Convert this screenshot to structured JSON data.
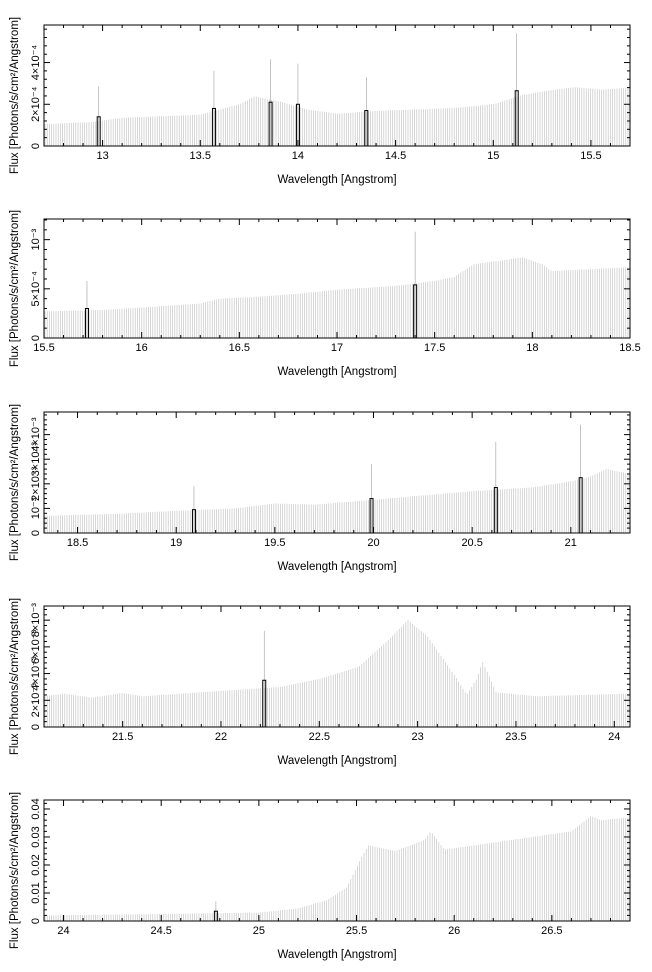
{
  "chart_data": [
    {
      "type": "bar",
      "xlabel": "Wavelength [Angstrom]",
      "ylabel": "Flux [Photons/s/cm²/Angstrom]",
      "xlim": [
        12.7,
        15.7
      ],
      "ylim": [
        0,
        0.00058
      ],
      "xticks": [
        13,
        13.5,
        14,
        14.5,
        15,
        15.5
      ],
      "xtick_labels": [
        "13",
        "13.5",
        "14",
        "14.5",
        "15",
        "15.5"
      ],
      "yticks": [
        0,
        0.0002,
        0.0004
      ],
      "ytick_labels": [
        "0",
        "2×10⁻⁴",
        "4×10⁻⁴"
      ],
      "continuum": [
        [
          12.7,
          0.000105
        ],
        [
          12.95,
          0.000115
        ],
        [
          13.1,
          0.000135
        ],
        [
          13.5,
          0.00015
        ],
        [
          13.7,
          0.0002
        ],
        [
          13.78,
          0.000238
        ],
        [
          13.9,
          0.000215
        ],
        [
          14.05,
          0.000175
        ],
        [
          14.2,
          0.000155
        ],
        [
          14.4,
          0.000168
        ],
        [
          14.8,
          0.000182
        ],
        [
          15.0,
          0.0002
        ],
        [
          15.15,
          0.000245
        ],
        [
          15.3,
          0.000268
        ],
        [
          15.42,
          0.000282
        ],
        [
          15.55,
          0.00027
        ],
        [
          15.7,
          0.00028
        ]
      ],
      "line_bins": [
        {
          "x": 12.98,
          "value": 0.00014,
          "error": 0.000285
        },
        {
          "x": 13.57,
          "value": 0.00018,
          "error": 0.00036
        },
        {
          "x": 13.86,
          "value": 0.00021,
          "error": 0.000415
        },
        {
          "x": 14.0,
          "value": 0.0002,
          "error": 0.000395
        },
        {
          "x": 14.35,
          "value": 0.00017,
          "error": 0.00033
        },
        {
          "x": 15.12,
          "value": 0.000265,
          "error": 0.00054
        }
      ]
    },
    {
      "type": "bar",
      "xlabel": "Wavelength [Angstrom]",
      "ylabel": "Flux [Photons/s/cm²/Angstrom]",
      "xlim": [
        15.5,
        18.5
      ],
      "ylim": [
        0,
        0.00121
      ],
      "xticks": [
        15.5,
        16,
        16.5,
        17,
        17.5,
        18,
        18.5
      ],
      "xtick_labels": [
        "15.5",
        "16",
        "16.5",
        "17",
        "17.5",
        "18",
        "18.5"
      ],
      "yticks": [
        0,
        0.0005,
        0.001
      ],
      "ytick_labels": [
        "0",
        "5×10⁻⁴",
        "10⁻³"
      ],
      "continuum": [
        [
          15.5,
          0.00027
        ],
        [
          15.8,
          0.000285
        ],
        [
          16.0,
          0.00031
        ],
        [
          16.3,
          0.00035
        ],
        [
          16.4,
          0.0004
        ],
        [
          16.6,
          0.00042
        ],
        [
          16.8,
          0.00045
        ],
        [
          17.0,
          0.00049
        ],
        [
          17.3,
          0.00053
        ],
        [
          17.5,
          0.00058
        ],
        [
          17.6,
          0.00062
        ],
        [
          17.7,
          0.00075
        ],
        [
          17.85,
          0.00079
        ],
        [
          17.95,
          0.00082
        ],
        [
          18.05,
          0.00075
        ],
        [
          18.1,
          0.00068
        ],
        [
          18.3,
          0.0007
        ],
        [
          18.5,
          0.00072
        ]
      ],
      "line_bins": [
        {
          "x": 15.72,
          "value": 0.0003,
          "error": 0.00058
        },
        {
          "x": 17.4,
          "value": 0.00054,
          "error": 0.00108
        }
      ]
    },
    {
      "type": "bar",
      "xlabel": "Wavelength [Angstrom]",
      "ylabel": "Flux [Photons/s/cm²/Angstrom]",
      "xlim": [
        18.33,
        21.3
      ],
      "ylim": [
        0,
        0.00492
      ],
      "xticks": [
        18.5,
        19,
        19.5,
        20,
        20.5,
        21
      ],
      "xtick_labels": [
        "18.5",
        "19",
        "19.5",
        "20",
        "20.5",
        "21"
      ],
      "yticks": [
        0,
        0.001,
        0.002,
        0.003,
        0.004
      ],
      "ytick_labels": [
        "0",
        "10⁻³",
        "2×10⁻³",
        "3×10⁻³",
        "4×10⁻³"
      ],
      "continuum": [
        [
          18.33,
          0.0007
        ],
        [
          18.7,
          0.00078
        ],
        [
          19.0,
          0.0009
        ],
        [
          19.3,
          0.001
        ],
        [
          19.5,
          0.0012
        ],
        [
          19.7,
          0.00115
        ],
        [
          20.0,
          0.00135
        ],
        [
          20.5,
          0.0017
        ],
        [
          20.8,
          0.00185
        ],
        [
          21.0,
          0.0021
        ],
        [
          21.1,
          0.0023
        ],
        [
          21.18,
          0.0026
        ],
        [
          21.3,
          0.0024
        ]
      ],
      "line_bins": [
        {
          "x": 19.09,
          "value": 0.00095,
          "error": 0.0019
        },
        {
          "x": 19.99,
          "value": 0.0014,
          "error": 0.0028
        },
        {
          "x": 20.62,
          "value": 0.00185,
          "error": 0.0037
        },
        {
          "x": 21.05,
          "value": 0.00225,
          "error": 0.0044
        }
      ]
    },
    {
      "type": "bar",
      "xlabel": "Wavelength [Angstrom]",
      "ylabel": "Flux [Photons/s/cm²/Angstrom]",
      "xlim": [
        21.1,
        24.08
      ],
      "ylim": [
        0,
        0.00906
      ],
      "xticks": [
        21.5,
        22,
        22.5,
        23,
        23.5,
        24
      ],
      "xtick_labels": [
        "21.5",
        "22",
        "22.5",
        "23",
        "23.5",
        "24"
      ],
      "yticks": [
        0,
        0.002,
        0.004,
        0.006,
        0.008
      ],
      "ytick_labels": [
        "0",
        "2×10⁻³",
        "4×10⁻³",
        "6×10⁻³",
        "8×10⁻³"
      ],
      "continuum": [
        [
          21.1,
          0.0023
        ],
        [
          21.2,
          0.0025
        ],
        [
          21.35,
          0.0022
        ],
        [
          21.5,
          0.00255
        ],
        [
          21.6,
          0.0023
        ],
        [
          22.0,
          0.0027
        ],
        [
          22.3,
          0.003
        ],
        [
          22.5,
          0.0036
        ],
        [
          22.7,
          0.0045
        ],
        [
          22.85,
          0.0065
        ],
        [
          22.95,
          0.008
        ],
        [
          23.05,
          0.0068
        ],
        [
          23.2,
          0.0036
        ],
        [
          23.25,
          0.0024
        ],
        [
          23.3,
          0.0036
        ],
        [
          23.33,
          0.0049
        ],
        [
          23.4,
          0.0026
        ],
        [
          23.6,
          0.0023
        ],
        [
          24.08,
          0.0025
        ]
      ],
      "line_bins": [
        {
          "x": 22.22,
          "value": 0.0035,
          "error": 0.0072
        }
      ]
    },
    {
      "type": "bar",
      "xlabel": "Wavelength [Angstrom]",
      "ylabel": "Flux [Photons/s/cm²/Angstrom]",
      "xlim": [
        23.9,
        26.9
      ],
      "ylim": [
        0,
        0.0432
      ],
      "xticks": [
        24,
        24.5,
        25,
        25.5,
        26,
        26.5
      ],
      "xtick_labels": [
        "24",
        "24.5",
        "25",
        "25.5",
        "26",
        "26.5"
      ],
      "yticks": [
        0,
        0.01,
        0.02,
        0.03,
        0.04
      ],
      "ytick_labels": [
        "0",
        "0.01",
        "0.02",
        "0.03",
        "0.04"
      ],
      "continuum": [
        [
          23.9,
          0.002
        ],
        [
          24.5,
          0.0025
        ],
        [
          25.0,
          0.003
        ],
        [
          25.2,
          0.0045
        ],
        [
          25.35,
          0.0075
        ],
        [
          25.45,
          0.012
        ],
        [
          25.52,
          0.022
        ],
        [
          25.56,
          0.027
        ],
        [
          25.7,
          0.025
        ],
        [
          25.85,
          0.029
        ],
        [
          25.88,
          0.032
        ],
        [
          25.95,
          0.0255
        ],
        [
          26.2,
          0.028
        ],
        [
          26.6,
          0.032
        ],
        [
          26.7,
          0.0375
        ],
        [
          26.75,
          0.036
        ],
        [
          26.9,
          0.037
        ]
      ],
      "line_bins": [
        {
          "x": 24.78,
          "value": 0.0035,
          "error": 0.007
        }
      ]
    }
  ]
}
